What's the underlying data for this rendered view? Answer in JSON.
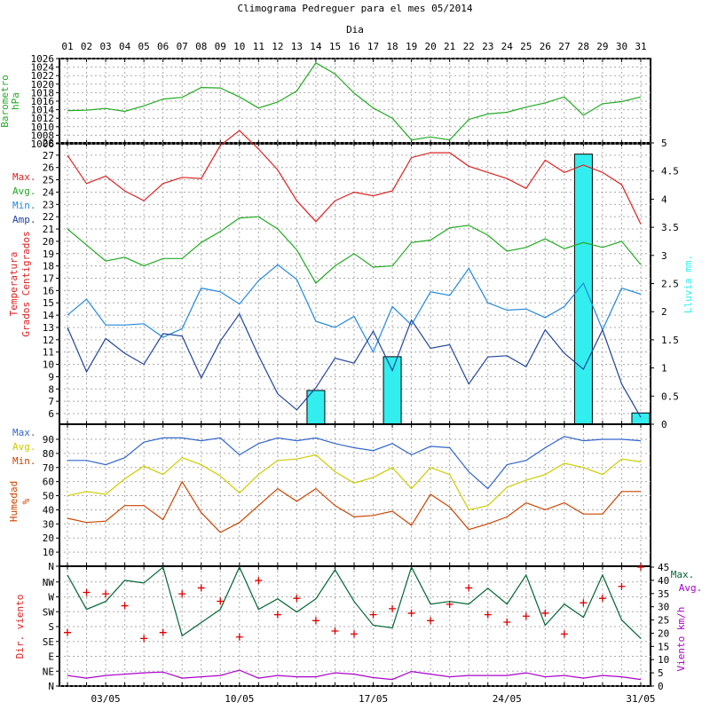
{
  "title": "Climograma Pedreguer para el mes 05/2014",
  "day_axis_label": "Dia",
  "day_labels": [
    "01",
    "02",
    "03",
    "04",
    "05",
    "06",
    "07",
    "08",
    "09",
    "10",
    "11",
    "12",
    "13",
    "14",
    "15",
    "16",
    "17",
    "18",
    "19",
    "20",
    "21",
    "22",
    "23",
    "24",
    "25",
    "26",
    "27",
    "28",
    "29",
    "30",
    "31"
  ],
  "date_labels": [
    {
      "day": 3,
      "label": "03/05"
    },
    {
      "day": 10,
      "label": "10/05"
    },
    {
      "day": 17,
      "label": "17/05"
    },
    {
      "day": 24,
      "label": "24/05"
    },
    {
      "day": 31,
      "label": "31/05"
    }
  ],
  "colors": {
    "pressure": "#22aa22",
    "max": "#dd2222",
    "avg": "#22aa22",
    "min": "#2288dd",
    "amp": "#224499",
    "rain": "#33eeee",
    "hum_max": "#3366cc",
    "hum_avg": "#cccc00",
    "hum_min": "#cc4400",
    "wind_max": "#006633",
    "wind_avg": "#aa00cc",
    "wind_dir": "#dd0000"
  },
  "chart_data": [
    {
      "type": "line",
      "name": "pressure",
      "ylabel": [
        "Barometro",
        "hPa"
      ],
      "ylim": [
        1006,
        1026
      ],
      "yticks": [
        1006,
        1008,
        1010,
        1012,
        1014,
        1016,
        1018,
        1020,
        1022,
        1024,
        1026
      ],
      "x": [
        1,
        2,
        3,
        4,
        5,
        6,
        7,
        8,
        9,
        10,
        11,
        12,
        13,
        14,
        15,
        16,
        17,
        18,
        19,
        20,
        21,
        22,
        23,
        24,
        25,
        26,
        27,
        28,
        29,
        30,
        31
      ],
      "series": [
        {
          "values": [
            1013.8,
            1013.9,
            1014.3,
            1013.6,
            1014.9,
            1016.5,
            1016.9,
            1019.2,
            1019.1,
            1017.0,
            1014.4,
            1015.8,
            1018.4,
            1025.0,
            1022.4,
            1017.9,
            1014.4,
            1012.0,
            1006.9,
            1007.6,
            1006.9,
            1011.7,
            1013.0,
            1013.4,
            1014.6,
            1015.6,
            1017.0,
            1012.7,
            1015.4,
            1015.9,
            1017.0
          ]
        }
      ]
    },
    {
      "type": "line",
      "name": "temperature",
      "ylabel": [
        "Temperatura",
        "Grados Centigrados"
      ],
      "y2label": "Lluvia mm.",
      "ylim": [
        6,
        28
      ],
      "y2lim": [
        0,
        5
      ],
      "yticks": [
        6,
        7,
        8,
        9,
        10,
        11,
        12,
        13,
        14,
        15,
        16,
        17,
        18,
        19,
        20,
        21,
        22,
        23,
        24,
        25,
        26,
        27,
        28
      ],
      "y2ticks": [
        "0",
        "0.5",
        "1",
        "1.5",
        "2",
        "2.5",
        "3",
        "3.5",
        "4",
        "4.5",
        "5"
      ],
      "legend": [
        "Max.",
        "Avg.",
        "Min.",
        "Amp."
      ],
      "x": [
        1,
        2,
        3,
        4,
        5,
        6,
        7,
        8,
        9,
        10,
        11,
        12,
        13,
        14,
        15,
        16,
        17,
        18,
        19,
        20,
        21,
        22,
        23,
        24,
        25,
        26,
        27,
        28,
        29,
        30,
        31
      ],
      "series": [
        {
          "name": "Max.",
          "values": [
            27.0,
            24.7,
            25.3,
            24.1,
            23.3,
            24.7,
            25.2,
            25.1,
            27.8,
            29.0,
            27.5,
            25.8,
            23.3,
            21.6,
            23.3,
            24.0,
            23.7,
            24.1,
            26.8,
            27.2,
            27.2,
            26.1,
            25.6,
            25.1,
            24.3,
            26.6,
            25.6,
            26.2,
            25.6,
            24.6,
            21.4
          ]
        },
        {
          "name": "Avg.",
          "values": [
            21.0,
            19.7,
            18.4,
            18.7,
            18.0,
            18.6,
            18.6,
            19.9,
            20.8,
            21.9,
            22.0,
            21.0,
            19.3,
            16.6,
            18.0,
            19.0,
            17.9,
            18.0,
            19.9,
            20.1,
            21.1,
            21.3,
            20.5,
            19.2,
            19.5,
            20.2,
            19.4,
            19.9,
            19.5,
            20.0,
            18.1
          ]
        },
        {
          "name": "Min.",
          "values": [
            14.0,
            15.3,
            13.2,
            13.2,
            13.3,
            12.2,
            12.9,
            16.2,
            15.9,
            14.9,
            16.8,
            18.1,
            16.9,
            13.5,
            13.0,
            13.9,
            11.0,
            14.7,
            13.2,
            15.9,
            15.6,
            17.8,
            15.0,
            14.4,
            14.5,
            13.8,
            14.7,
            16.6,
            12.8,
            16.2,
            15.7
          ]
        },
        {
          "name": "Amp.",
          "values": [
            13.0,
            9.4,
            12.1,
            10.9,
            10.0,
            12.5,
            12.3,
            8.9,
            11.9,
            14.1,
            10.7,
            7.6,
            6.3,
            8.1,
            10.5,
            10.1,
            12.7,
            9.5,
            13.6,
            11.3,
            11.6,
            8.4,
            10.6,
            10.7,
            9.8,
            12.8,
            10.9,
            9.6,
            12.8,
            8.4,
            5.7
          ]
        }
      ],
      "rain": {
        "name": "Lluvia mm.",
        "days": [
          14,
          18,
          28,
          31
        ],
        "values": [
          0.6,
          1.2,
          4.8,
          0.2
        ]
      }
    },
    {
      "type": "line",
      "name": "humidity",
      "ylabel": [
        "Humedad",
        "%"
      ],
      "ylim": [
        0,
        90
      ],
      "yticks": [
        "N",
        "10",
        "20",
        "30",
        "40",
        "50",
        "60",
        "70",
        "80",
        "90"
      ],
      "legend": [
        "Max.",
        "Avg.",
        "Min."
      ],
      "x": [
        1,
        2,
        3,
        4,
        5,
        6,
        7,
        8,
        9,
        10,
        11,
        12,
        13,
        14,
        15,
        16,
        17,
        18,
        19,
        20,
        21,
        22,
        23,
        24,
        25,
        26,
        27,
        28,
        29,
        30,
        31
      ],
      "series": [
        {
          "name": "Max.",
          "values": [
            75,
            75,
            72,
            77,
            88,
            91,
            91,
            89,
            91,
            79,
            87,
            91,
            89,
            91,
            87,
            84,
            82,
            87,
            79,
            85,
            84,
            67,
            55,
            72,
            75,
            84,
            92,
            89,
            90,
            90,
            89
          ]
        },
        {
          "name": "Avg.",
          "values": [
            50,
            53,
            51,
            62,
            71,
            65,
            77,
            72,
            64,
            52,
            65,
            75,
            76,
            79,
            67,
            59,
            63,
            70,
            55,
            70,
            65,
            40,
            43,
            56,
            61,
            65,
            73,
            70,
            65,
            76,
            74
          ]
        },
        {
          "name": "Min.",
          "values": [
            34,
            31,
            32,
            43,
            43,
            33,
            60,
            38,
            24,
            31,
            43,
            55,
            46,
            55,
            43,
            35,
            36,
            39,
            29,
            51,
            42,
            26,
            30,
            35,
            45,
            40,
            45,
            37,
            37,
            53,
            53
          ]
        }
      ]
    },
    {
      "type": "line",
      "name": "wind",
      "ylabel": "Dir. viento",
      "y2label": "Viento km/h",
      "ylim": [
        0,
        8
      ],
      "y2lim": [
        0,
        45
      ],
      "yticks": [
        "N",
        "NE",
        "E",
        "SE",
        "S",
        "SW",
        "W",
        "NW"
      ],
      "y2ticks": [
        "0",
        "5",
        "10",
        "15",
        "20",
        "25",
        "30",
        "35",
        "40",
        "45"
      ],
      "legend": [
        "Max.",
        "Avg."
      ],
      "x": [
        1,
        2,
        3,
        4,
        5,
        6,
        7,
        8,
        9,
        10,
        11,
        12,
        13,
        14,
        15,
        16,
        17,
        18,
        19,
        20,
        21,
        22,
        23,
        24,
        25,
        26,
        27,
        28,
        29,
        30,
        31
      ],
      "series": [
        {
          "name": "Max.",
          "values": [
            42,
            29,
            32,
            40,
            39,
            45,
            19,
            24,
            29,
            45,
            29,
            33,
            28,
            33,
            44,
            32,
            23,
            22,
            45,
            31,
            32,
            31,
            37,
            31,
            42,
            23,
            31,
            26,
            42,
            25,
            18
          ]
        },
        {
          "name": "Avg.",
          "values": [
            4,
            3,
            4,
            4.5,
            5,
            5.3,
            3,
            3.5,
            4,
            6,
            3,
            4,
            3.5,
            3.5,
            5,
            4.5,
            3.2,
            2.5,
            5.5,
            4.5,
            3.5,
            4,
            4,
            4,
            5,
            3.5,
            4,
            3,
            4,
            3.5,
            2.5
          ]
        },
        {
          "name": "Dir. viento",
          "values": [
            3.6,
            6.3,
            6.2,
            5.4,
            3.2,
            3.6,
            6.2,
            6.6,
            5.7,
            3.3,
            7.1,
            4.8,
            5.9,
            4.4,
            3.7,
            3.5,
            4.8,
            5.2,
            4.9,
            4.4,
            5.5,
            6.6,
            4.8,
            4.3,
            4.7,
            4.9,
            3.5,
            5.6,
            5.9,
            6.7,
            8.0
          ]
        }
      ]
    }
  ]
}
